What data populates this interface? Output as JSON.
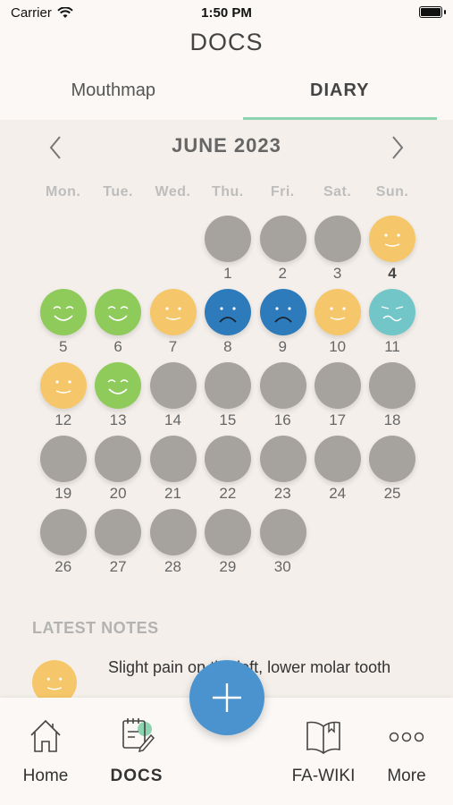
{
  "status_bar": {
    "carrier": "Carrier",
    "time": "1:50 PM"
  },
  "header": {
    "title": "DOCS"
  },
  "tabs": [
    {
      "label": "Mouthmap",
      "active": false
    },
    {
      "label": "DIARY",
      "active": true
    }
  ],
  "calendar": {
    "month_label": "JUNE 2023",
    "weekdays": [
      "Mon.",
      "Tue.",
      "Wed.",
      "Thu.",
      "Fri.",
      "Sat.",
      "Sun."
    ],
    "leading_blanks": 3,
    "today": 4,
    "days": [
      {
        "day": "1",
        "mood": "none"
      },
      {
        "day": "2",
        "mood": "none"
      },
      {
        "day": "3",
        "mood": "none"
      },
      {
        "day": "4",
        "mood": "content"
      },
      {
        "day": "5",
        "mood": "happy"
      },
      {
        "day": "6",
        "mood": "happy"
      },
      {
        "day": "7",
        "mood": "content"
      },
      {
        "day": "8",
        "mood": "sad"
      },
      {
        "day": "9",
        "mood": "sad"
      },
      {
        "day": "10",
        "mood": "content"
      },
      {
        "day": "11",
        "mood": "uneasy"
      },
      {
        "day": "12",
        "mood": "content"
      },
      {
        "day": "13",
        "mood": "happy"
      },
      {
        "day": "14",
        "mood": "none"
      },
      {
        "day": "15",
        "mood": "none"
      },
      {
        "day": "16",
        "mood": "none"
      },
      {
        "day": "17",
        "mood": "none"
      },
      {
        "day": "18",
        "mood": "none"
      },
      {
        "day": "19",
        "mood": "none"
      },
      {
        "day": "20",
        "mood": "none"
      },
      {
        "day": "21",
        "mood": "none"
      },
      {
        "day": "22",
        "mood": "none"
      },
      {
        "day": "23",
        "mood": "none"
      },
      {
        "day": "24",
        "mood": "none"
      },
      {
        "day": "25",
        "mood": "none"
      },
      {
        "day": "26",
        "mood": "none"
      },
      {
        "day": "27",
        "mood": "none"
      },
      {
        "day": "28",
        "mood": "none"
      },
      {
        "day": "29",
        "mood": "none"
      },
      {
        "day": "30",
        "mood": "none"
      }
    ]
  },
  "latest_notes": {
    "title": "LATEST NOTES",
    "items": [
      {
        "mood": "content",
        "text": "Slight pain on the left, lower molar tooth"
      }
    ]
  },
  "bottom_nav": {
    "items": [
      {
        "label": "Home",
        "icon": "home-icon",
        "active": false
      },
      {
        "label": "DOCS",
        "icon": "docs-icon",
        "active": true
      },
      {
        "label": "FA-WIKI",
        "icon": "book-icon",
        "active": false
      },
      {
        "label": "More",
        "icon": "more-icon",
        "active": false
      }
    ]
  },
  "fab": {
    "icon": "plus-icon"
  },
  "colors": {
    "accent_tab": "#8ed3b0",
    "fab": "#4b93cf",
    "mood_none": "#a6a29e",
    "mood_content": "#f6c76a",
    "mood_happy": "#8fcb5b",
    "mood_sad": "#2d7bbb",
    "mood_uneasy": "#73c6c8"
  }
}
